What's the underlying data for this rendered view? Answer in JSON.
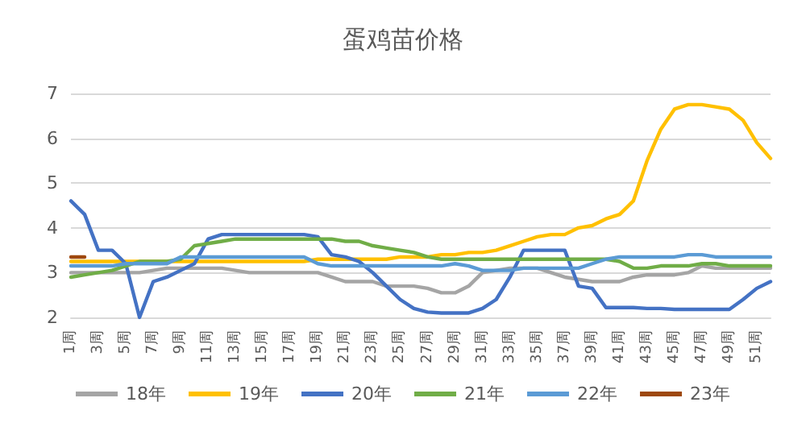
{
  "chart_data": {
    "type": "line",
    "title": "蛋鸡苗价格",
    "categories": [
      "1周",
      null,
      "3周",
      null,
      "5周",
      null,
      "7周",
      null,
      "9周",
      null,
      "11周",
      null,
      "13周",
      null,
      "15周",
      null,
      "17周",
      null,
      "19周",
      null,
      "21周",
      null,
      "23周",
      null,
      "25周",
      null,
      "27周",
      null,
      "29周",
      null,
      "31周",
      null,
      "33周",
      null,
      "35周",
      null,
      "37周",
      null,
      "39周",
      null,
      "41周",
      null,
      "43周",
      null,
      "45周",
      null,
      "47周",
      null,
      "49周",
      null,
      "51周",
      null
    ],
    "ylim": [
      2,
      7
    ],
    "yticks": [
      2,
      3,
      4,
      5,
      6,
      7
    ],
    "grid": "y",
    "legend": "bottom",
    "marker": "none",
    "line_style": "solid",
    "series": [
      {
        "name": "18年",
        "color": "#a5a5a5",
        "values": [
          3.0,
          3.0,
          3.0,
          3.0,
          3.0,
          3.0,
          3.05,
          3.1,
          3.1,
          3.1,
          3.1,
          3.1,
          3.05,
          3.0,
          3.0,
          3.0,
          3.0,
          3.0,
          3.0,
          2.9,
          2.8,
          2.8,
          2.8,
          2.7,
          2.7,
          2.7,
          2.65,
          2.55,
          2.55,
          2.7,
          3.0,
          3.05,
          3.1,
          3.1,
          3.1,
          3.0,
          2.9,
          2.85,
          2.8,
          2.8,
          2.8,
          2.9,
          2.95,
          2.95,
          2.95,
          3.0,
          3.15,
          3.1,
          3.1,
          3.1,
          3.1,
          3.1
        ]
      },
      {
        "name": "19年",
        "color": "#ffc000",
        "values": [
          3.25,
          3.25,
          3.25,
          3.25,
          3.25,
          3.25,
          3.25,
          3.25,
          3.25,
          3.25,
          3.25,
          3.25,
          3.25,
          3.25,
          3.25,
          3.25,
          3.25,
          3.25,
          3.3,
          3.3,
          3.3,
          3.3,
          3.3,
          3.3,
          3.35,
          3.35,
          3.35,
          3.4,
          3.4,
          3.45,
          3.45,
          3.5,
          3.6,
          3.7,
          3.8,
          3.85,
          3.85,
          4.0,
          4.05,
          4.2,
          4.3,
          4.6,
          5.5,
          6.2,
          6.65,
          6.75,
          6.75,
          6.7,
          6.65,
          6.4,
          5.9,
          5.55
        ]
      },
      {
        "name": "20年",
        "color": "#4472c4",
        "values": [
          4.6,
          4.3,
          3.5,
          3.5,
          3.2,
          2.0,
          2.8,
          2.9,
          3.05,
          3.2,
          3.75,
          3.85,
          3.85,
          3.85,
          3.85,
          3.85,
          3.85,
          3.85,
          3.8,
          3.4,
          3.35,
          3.25,
          3.0,
          2.7,
          2.4,
          2.2,
          2.12,
          2.1,
          2.1,
          2.1,
          2.2,
          2.4,
          2.9,
          3.5,
          3.5,
          3.5,
          3.5,
          2.7,
          2.65,
          2.22,
          2.22,
          2.22,
          2.2,
          2.2,
          2.18,
          2.18,
          2.18,
          2.18,
          2.18,
          2.4,
          2.65,
          2.8
        ]
      },
      {
        "name": "21年",
        "color": "#70ad47",
        "values": [
          2.9,
          2.95,
          3.0,
          3.05,
          3.15,
          3.25,
          3.25,
          3.25,
          3.3,
          3.6,
          3.65,
          3.7,
          3.75,
          3.75,
          3.75,
          3.75,
          3.75,
          3.75,
          3.75,
          3.75,
          3.7,
          3.7,
          3.6,
          3.55,
          3.5,
          3.45,
          3.35,
          3.3,
          3.3,
          3.3,
          3.3,
          3.3,
          3.3,
          3.3,
          3.3,
          3.3,
          3.3,
          3.3,
          3.3,
          3.3,
          3.25,
          3.1,
          3.1,
          3.15,
          3.15,
          3.15,
          3.2,
          3.2,
          3.15,
          3.15,
          3.15,
          3.15
        ]
      },
      {
        "name": "22年",
        "color": "#5b9bd5",
        "values": [
          3.15,
          3.15,
          3.15,
          3.15,
          3.2,
          3.2,
          3.2,
          3.2,
          3.35,
          3.35,
          3.35,
          3.35,
          3.35,
          3.35,
          3.35,
          3.35,
          3.35,
          3.35,
          3.2,
          3.15,
          3.15,
          3.15,
          3.15,
          3.15,
          3.15,
          3.15,
          3.15,
          3.15,
          3.2,
          3.15,
          3.05,
          3.05,
          3.05,
          3.1,
          3.1,
          3.1,
          3.1,
          3.1,
          3.2,
          3.3,
          3.35,
          3.35,
          3.35,
          3.35,
          3.35,
          3.4,
          3.4,
          3.35,
          3.35,
          3.35,
          3.35,
          3.35
        ]
      },
      {
        "name": "23年",
        "color": "#9e480e",
        "values": [
          3.35,
          3.35,
          null,
          null,
          null,
          null,
          null,
          null,
          null,
          null,
          null,
          null,
          null,
          null,
          null,
          null,
          null,
          null,
          null,
          null,
          null,
          null,
          null,
          null,
          null,
          null,
          null,
          null,
          null,
          null,
          null,
          null,
          null,
          null,
          null,
          null,
          null,
          null,
          null,
          null,
          null,
          null,
          null,
          null,
          null,
          null,
          null,
          null,
          null,
          null,
          null,
          null
        ]
      }
    ]
  }
}
